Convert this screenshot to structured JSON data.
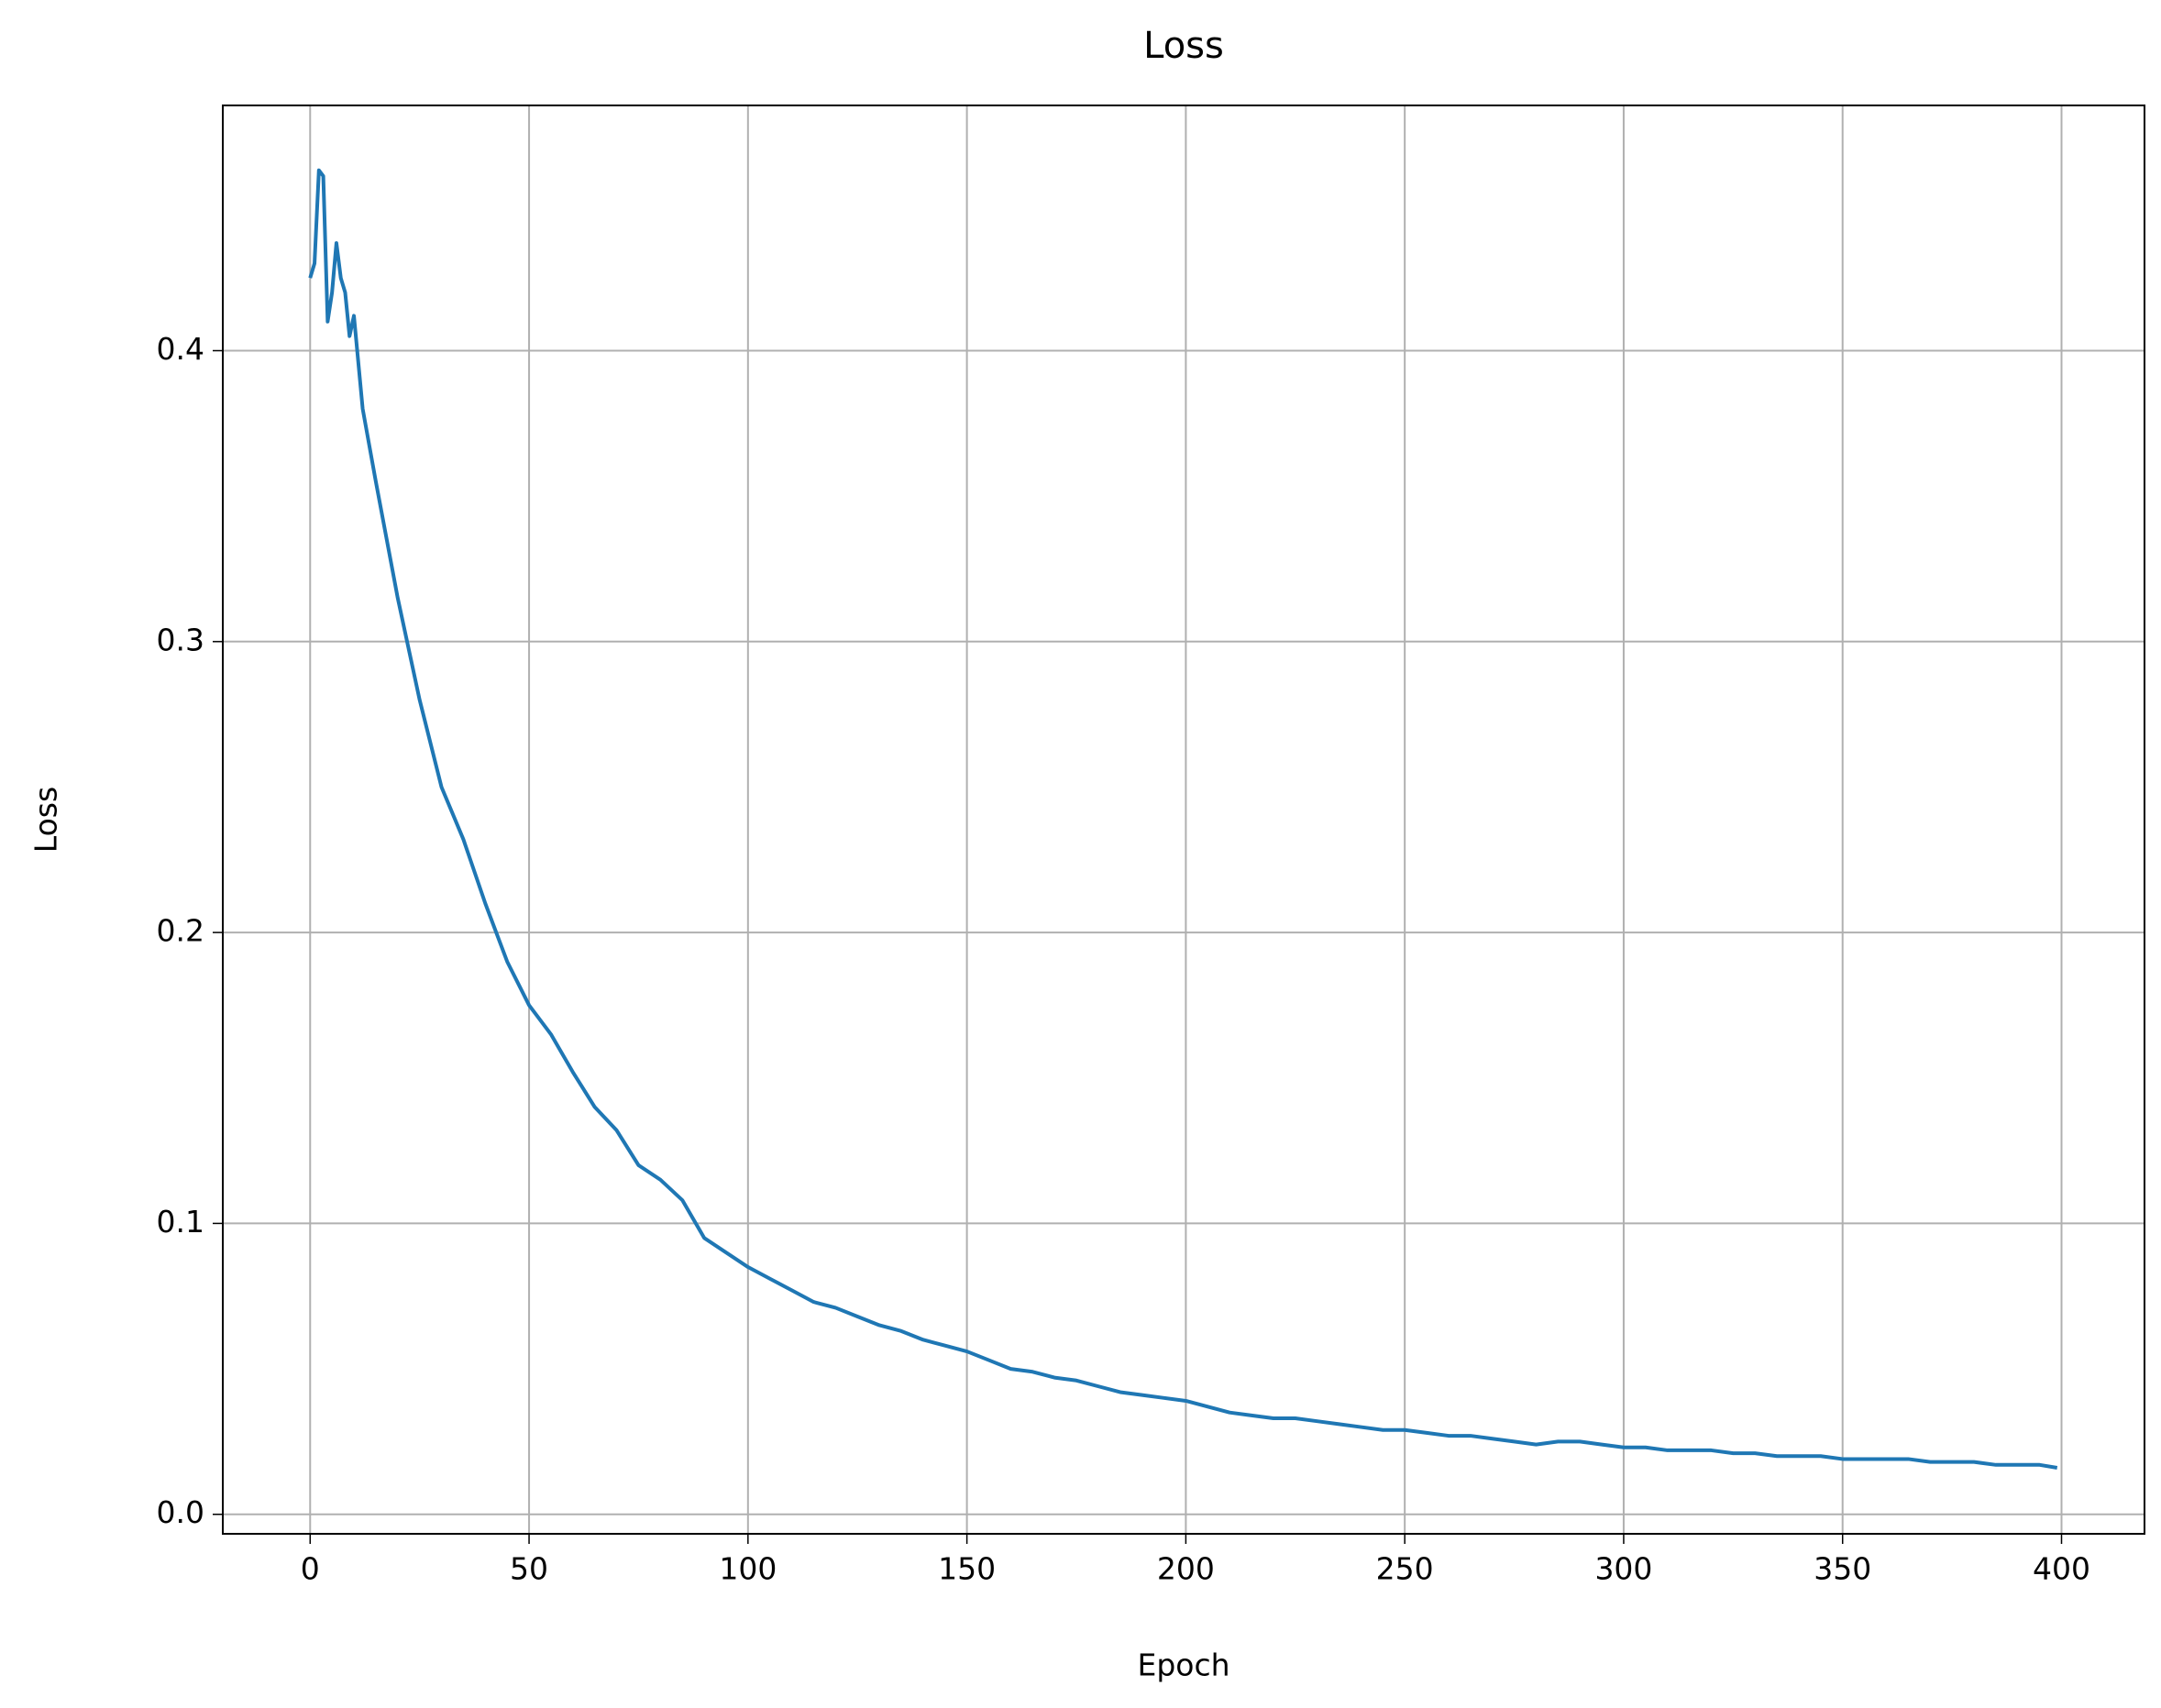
{
  "chart_data": {
    "type": "line",
    "title": "Loss",
    "xlabel": "Epoch",
    "ylabel": "Loss",
    "x": [
      0,
      1,
      2,
      3,
      4,
      5,
      6,
      7,
      8,
      9,
      10,
      12,
      15,
      20,
      25,
      30,
      35,
      40,
      45,
      50,
      55,
      60,
      65,
      70,
      75,
      80,
      85,
      90,
      95,
      100,
      105,
      110,
      115,
      120,
      125,
      130,
      135,
      140,
      145,
      150,
      155,
      160,
      165,
      170,
      175,
      180,
      185,
      190,
      195,
      200,
      205,
      210,
      215,
      220,
      225,
      230,
      235,
      240,
      245,
      250,
      255,
      260,
      265,
      270,
      275,
      280,
      285,
      290,
      295,
      300,
      305,
      310,
      315,
      320,
      325,
      330,
      335,
      340,
      345,
      350,
      355,
      360,
      365,
      370,
      375,
      380,
      385,
      390,
      395,
      399
    ],
    "series": [
      {
        "name": "Loss",
        "color": "#1f77b4",
        "values": [
          0.425,
          0.43,
          0.462,
          0.46,
          0.41,
          0.42,
          0.437,
          0.425,
          0.42,
          0.405,
          0.412,
          0.38,
          0.355,
          0.315,
          0.28,
          0.25,
          0.232,
          0.21,
          0.19,
          0.175,
          0.165,
          0.152,
          0.14,
          0.132,
          0.12,
          0.115,
          0.108,
          0.095,
          0.09,
          0.085,
          0.081,
          0.077,
          0.073,
          0.071,
          0.068,
          0.065,
          0.063,
          0.06,
          0.058,
          0.056,
          0.053,
          0.05,
          0.049,
          0.047,
          0.046,
          0.044,
          0.042,
          0.041,
          0.04,
          0.039,
          0.037,
          0.035,
          0.034,
          0.033,
          0.033,
          0.032,
          0.031,
          0.03,
          0.029,
          0.029,
          0.028,
          0.027,
          0.027,
          0.026,
          0.025,
          0.024,
          0.025,
          0.025,
          0.024,
          0.023,
          0.023,
          0.022,
          0.022,
          0.022,
          0.021,
          0.021,
          0.02,
          0.02,
          0.02,
          0.019,
          0.019,
          0.019,
          0.019,
          0.018,
          0.018,
          0.018,
          0.017,
          0.017,
          0.017,
          0.016
        ]
      }
    ],
    "xlim": [
      -19.95,
      418.95
    ],
    "xticks": [
      0,
      50,
      100,
      150,
      200,
      250,
      300,
      350,
      400
    ],
    "ylim": [
      -0.0067,
      0.4843
    ],
    "yticks": [
      {
        "value": 0,
        "label": "0.0"
      },
      0.1,
      0.2,
      0.3,
      0.4
    ],
    "grid": true
  }
}
